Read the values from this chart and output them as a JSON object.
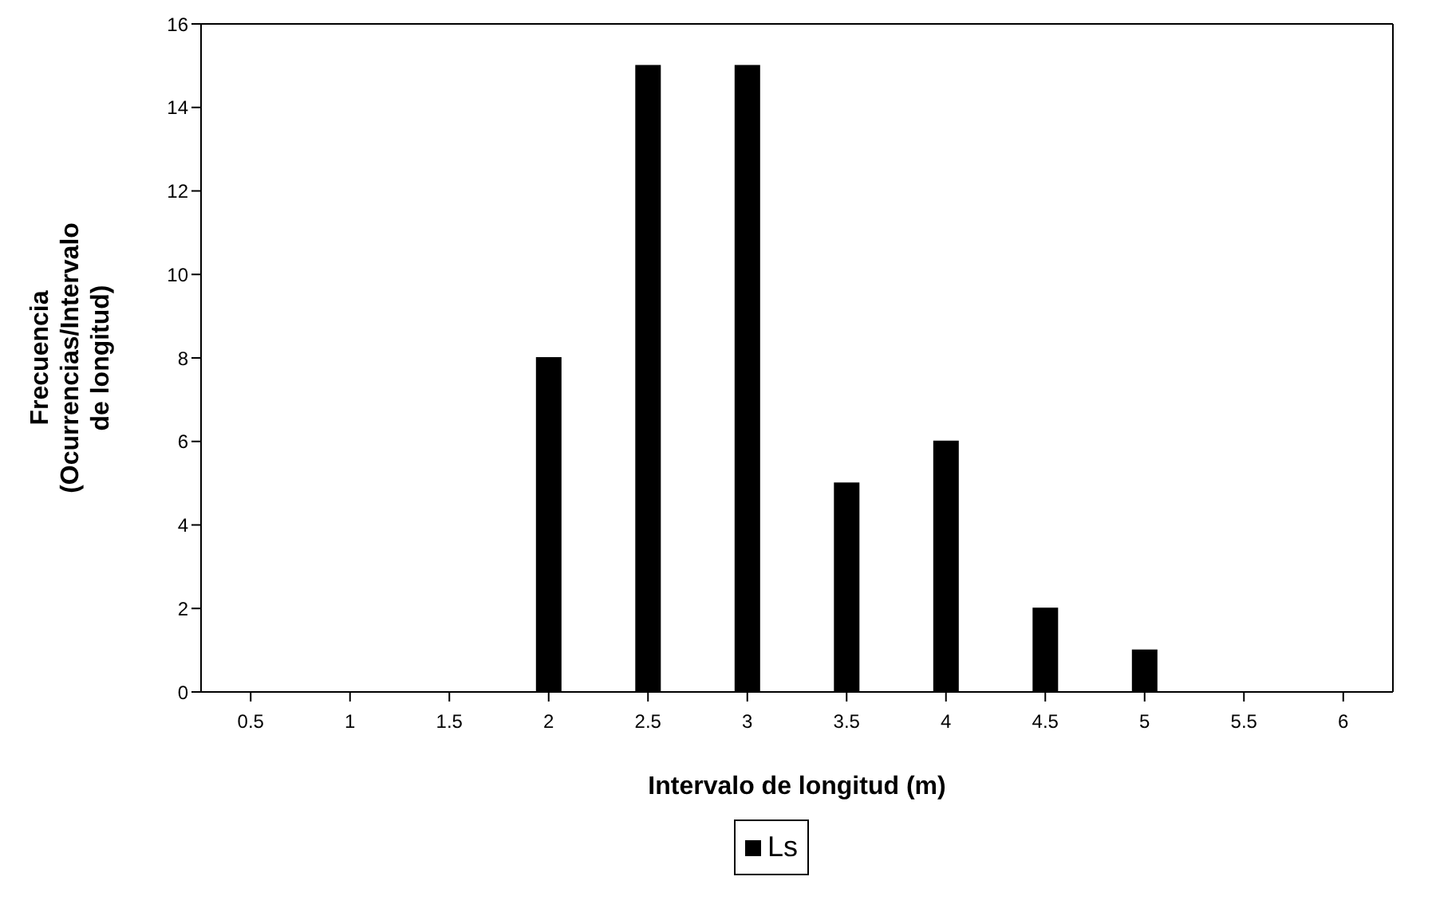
{
  "chart_data": {
    "type": "bar",
    "xlabel": "Intervalo de longitud (m)",
    "ylabel": "Frecuencia (Ocurrencias/Intervalo de longitud)",
    "categories": [
      "0.5",
      "1",
      "1.5",
      "2",
      "2.5",
      "3",
      "3.5",
      "4",
      "4.5",
      "5",
      "5.5",
      "6"
    ],
    "series": [
      {
        "name": "Ls",
        "color": "#000000",
        "values": [
          0,
          0,
          0,
          8,
          15,
          15,
          5,
          6,
          2,
          1,
          0,
          0
        ]
      }
    ],
    "ylim": [
      0,
      16
    ],
    "yticks": [
      0,
      2,
      4,
      6,
      8,
      10,
      12,
      14,
      16
    ],
    "grid": false,
    "legend": "bottom"
  }
}
